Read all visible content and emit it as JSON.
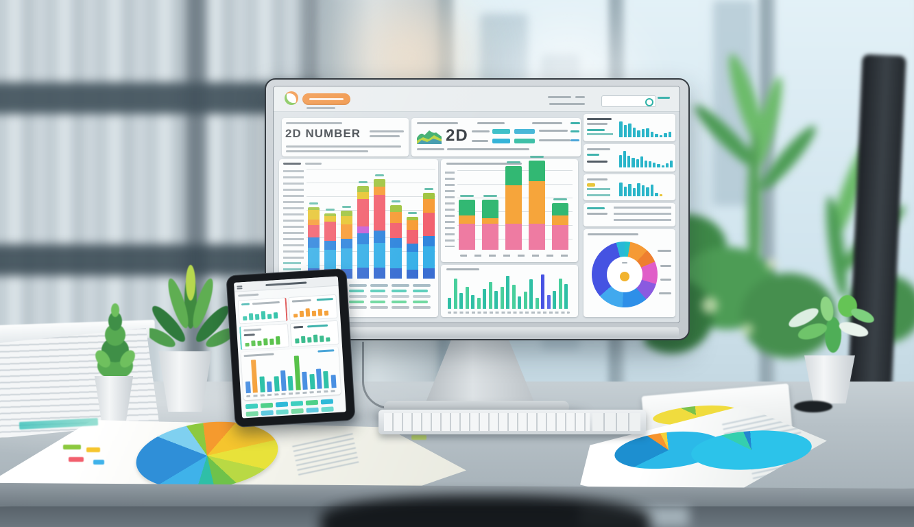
{
  "monitor": {
    "brand": {
      "title_caps": "2D NUMBER",
      "metric": "2D"
    },
    "palette": {
      "accent_orange": "#f0903e",
      "accent_teal": "#3fb3ad",
      "panel_teal": "#2ab5c9"
    },
    "left_chart": {
      "bars": [
        [
          [
            "#3a6ed2",
            15
          ],
          [
            "#38b0e8",
            30
          ],
          [
            "#2f85dd",
            15
          ],
          [
            "#f2606e",
            18
          ],
          [
            "#f79b35",
            8
          ],
          [
            "#e7c52f",
            14
          ],
          [
            "#9fc43f",
            4
          ]
        ],
        [
          [
            "#3a6ed2",
            14
          ],
          [
            "#38b0e8",
            28
          ],
          [
            "#2f85dd",
            13
          ],
          [
            "#f2606e",
            28
          ],
          [
            "#e7c52f",
            8
          ],
          [
            "#9fc43f",
            4
          ]
        ],
        [
          [
            "#3a6ed2",
            14
          ],
          [
            "#38b0e8",
            30
          ],
          [
            "#2f85dd",
            14
          ],
          [
            "#f79b35",
            21
          ],
          [
            "#e7c52f",
            12
          ],
          [
            "#9fc43f",
            8
          ]
        ],
        [
          [
            "#3a6ed2",
            16
          ],
          [
            "#38b0e8",
            34
          ],
          [
            "#2f85dd",
            16
          ],
          [
            "#c95fd6",
            10
          ],
          [
            "#f2606e",
            40
          ],
          [
            "#e7c52f",
            10
          ],
          [
            "#9fc43f",
            9
          ]
        ],
        [
          [
            "#3a6ed2",
            16
          ],
          [
            "#38b0e8",
            36
          ],
          [
            "#2f85dd",
            18
          ],
          [
            "#f2606e",
            52
          ],
          [
            "#f79b35",
            12
          ],
          [
            "#9fc43f",
            11
          ]
        ],
        [
          [
            "#3a6ed2",
            15
          ],
          [
            "#38b0e8",
            30
          ],
          [
            "#2f85dd",
            14
          ],
          [
            "#f2606e",
            22
          ],
          [
            "#f79b35",
            16
          ],
          [
            "#9fc43f",
            10
          ]
        ],
        [
          [
            "#3a6ed2",
            13
          ],
          [
            "#38b0e8",
            26
          ],
          [
            "#2f85dd",
            12
          ],
          [
            "#f2606e",
            20
          ],
          [
            "#f79b35",
            14
          ],
          [
            "#9fc43f",
            5
          ]
        ],
        [
          [
            "#3a6ed2",
            15
          ],
          [
            "#38b0e8",
            32
          ],
          [
            "#2f85dd",
            15
          ],
          [
            "#f2606e",
            34
          ],
          [
            "#f79b35",
            20
          ],
          [
            "#9fc43f",
            9
          ]
        ]
      ]
    },
    "mid_chart": {
      "bars": [
        [
          [
            "#ee7ba2",
            38
          ],
          [
            "#f6a53b",
            12
          ],
          [
            "#32b873",
            23
          ]
        ],
        [
          [
            "#ee7ba2",
            38
          ],
          [
            "#f6a53b",
            8
          ],
          [
            "#32b873",
            27
          ]
        ],
        [
          [
            "#ee7ba2",
            38
          ],
          [
            "#f6a53b",
            56
          ],
          [
            "#32b873",
            28
          ]
        ],
        [
          [
            "#ee7ba2",
            38
          ],
          [
            "#f6a53b",
            62
          ],
          [
            "#32b873",
            30
          ]
        ],
        [
          [
            "#ee7ba2",
            36
          ],
          [
            "#f6a53b",
            14
          ],
          [
            "#32b873",
            18
          ]
        ]
      ]
    },
    "mini_chart": {
      "values": [
        16,
        44,
        23,
        32,
        20,
        16,
        29,
        39,
        26,
        32,
        48,
        35,
        18,
        25,
        43,
        16,
        50,
        20,
        26,
        44,
        36
      ],
      "default_color": "#2fbfa5",
      "alt_color": "#48cf9d",
      "overrides": {
        "16": "#4753e3",
        "17": "#5a66e8"
      }
    },
    "right_panels": [
      {
        "color": "#2ab5c9",
        "values": [
          23,
          18,
          20,
          14,
          10,
          12,
          13,
          8,
          5,
          3,
          6,
          8
        ]
      },
      {
        "color": "#2ab5c9",
        "values": [
          18,
          24,
          17,
          14,
          12,
          16,
          10,
          9,
          7,
          5,
          3,
          6,
          10
        ]
      },
      {
        "color": "#2ab5c9",
        "values": [
          20,
          14,
          18,
          12,
          19,
          16,
          13,
          17,
          5,
          3
        ],
        "overrides": {
          "9": "#e8c53a"
        }
      }
    ],
    "donut": {
      "slices": [
        [
          10,
          "#23c2cc"
        ],
        [
          33,
          "#f59a35"
        ],
        [
          24,
          "#ee7f2f"
        ],
        [
          40,
          "#e05ec8"
        ],
        [
          32,
          "#8a5ae0"
        ],
        [
          45,
          "#2e8fe8"
        ],
        [
          45,
          "#41a9ee"
        ],
        [
          116,
          "#4553e2"
        ],
        [
          15,
          "#28b8d8"
        ]
      ],
      "center_dot": "#f2b32e"
    }
  },
  "tablet": {
    "stat_charts": [
      {
        "color": "#2fc2a8",
        "values": [
          6,
          10,
          8,
          12,
          7,
          9
        ]
      },
      {
        "color": "#f5a23c",
        "values": [
          5,
          9,
          12,
          8,
          10,
          7
        ]
      },
      {
        "color": "#58c24a",
        "values": [
          5,
          8,
          7,
          10,
          9,
          12
        ]
      },
      {
        "color": "#3dbd8f",
        "values": [
          7,
          10,
          8,
          11,
          9,
          6
        ]
      }
    ],
    "main_chart": {
      "values": [
        17,
        48,
        23,
        15,
        22,
        30,
        21,
        50,
        26,
        22,
        29,
        25,
        19
      ],
      "colors": [
        "#4a90e2",
        "#f5a23c",
        "#2fc2a8",
        "#4a90e2",
        "#2fc2a8",
        "#4a90e2",
        "#2fc2a8",
        "#58c24a",
        "#4a90e2",
        "#2fc2a8",
        "#4a90e2",
        "#2fc2a8",
        "#4a90e2"
      ]
    },
    "table": {
      "rows": 4,
      "cols": 6,
      "palette": [
        "#3ecfc0",
        "#4fd08a",
        "#2fb9d8"
      ]
    }
  },
  "papers": {
    "left_pie": [
      [
        48,
        "#f59a2e"
      ],
      [
        36,
        "#f5c52e"
      ],
      [
        26,
        "#e8e23a"
      ],
      [
        30,
        "#b9d944"
      ],
      [
        34,
        "#6fc24a"
      ],
      [
        30,
        "#2fbfa7"
      ],
      [
        42,
        "#3fb2ea"
      ],
      [
        52,
        "#2f8fd8"
      ],
      [
        34,
        "#7fd0f0"
      ],
      [
        28,
        "#8cc93f"
      ]
    ],
    "right_pie_a": [
      [
        250,
        "#2bb9e8"
      ],
      [
        60,
        "#1d8fd0"
      ],
      [
        30,
        "#f6942e"
      ],
      [
        20,
        "#f5d03a"
      ]
    ],
    "right_pie_b": [
      [
        300,
        "#2cc3ea"
      ],
      [
        40,
        "#35cfae"
      ],
      [
        20,
        "#2386d0"
      ]
    ],
    "folded_pie": [
      [
        300,
        "#f0dc3e"
      ],
      [
        60,
        "#7ac24c"
      ]
    ]
  }
}
